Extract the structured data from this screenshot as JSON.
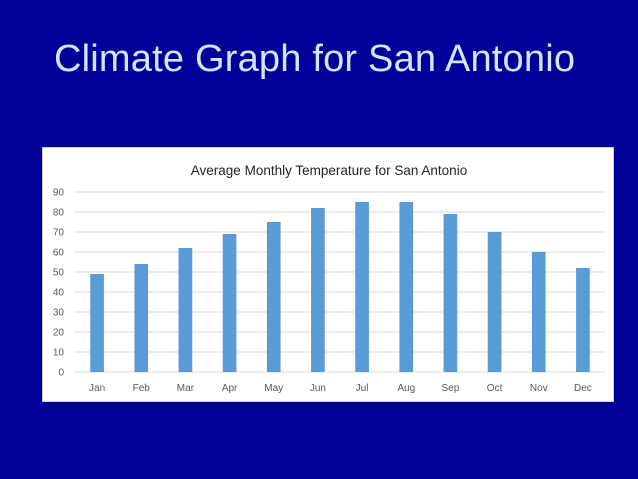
{
  "slide": {
    "title": "Climate Graph for San Antonio"
  },
  "colors": {
    "background": "#000099",
    "title": "#cfe8ff",
    "bar": "#5b9bd5",
    "grid": "#d9d9d9"
  },
  "chart_data": {
    "type": "bar",
    "title": "Average Monthly Temperature for San Antonio",
    "xlabel": "",
    "ylabel": "",
    "categories": [
      "Jan",
      "Feb",
      "Mar",
      "Apr",
      "May",
      "Jun",
      "Jul",
      "Aug",
      "Sep",
      "Oct",
      "Nov",
      "Dec"
    ],
    "values": [
      49,
      54,
      62,
      69,
      75,
      82,
      85,
      85,
      79,
      70,
      60,
      52
    ],
    "yticks": [
      0,
      10,
      20,
      30,
      40,
      50,
      60,
      70,
      80,
      90
    ],
    "ylim": [
      0,
      90
    ],
    "grid": true,
    "legend": "none"
  }
}
